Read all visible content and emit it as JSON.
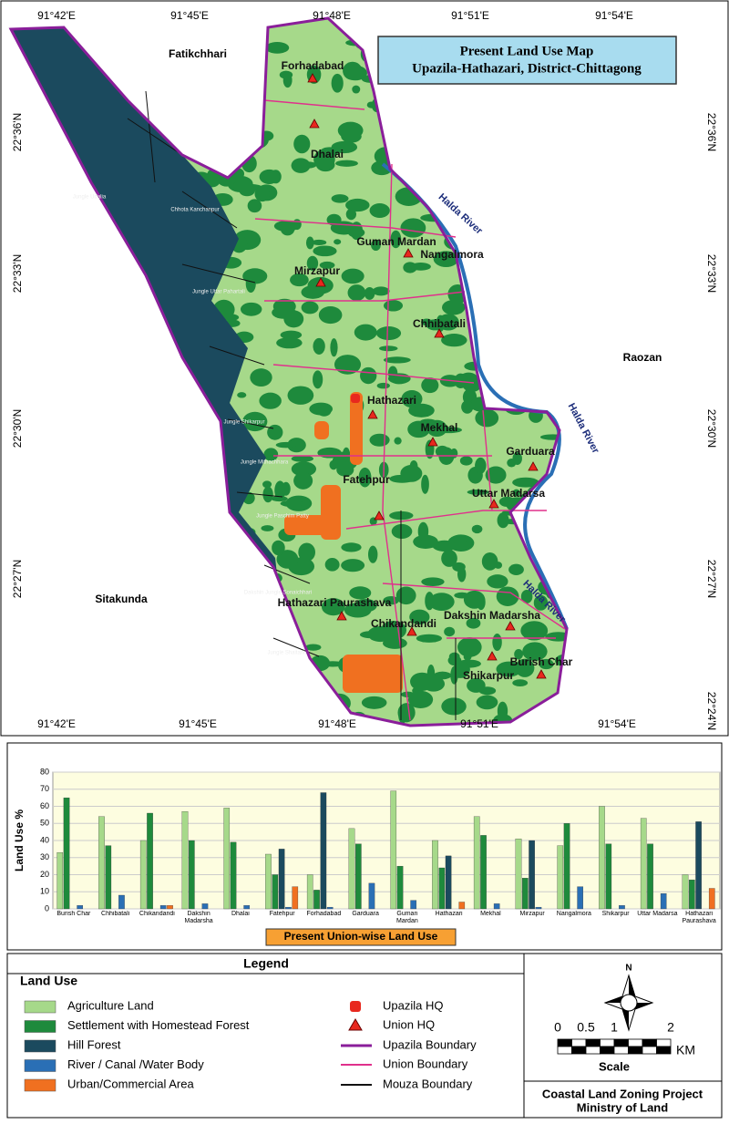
{
  "map": {
    "title": "Present  Land Use  Map",
    "subtitle": "Upazila-Hathazari, District-Chittagong",
    "lon_labels": [
      "91°42'E",
      "91°45'E",
      "91°48'E",
      "91°51'E",
      "91°54'E"
    ],
    "lat_labels": [
      "22°36'N",
      "22°33'N",
      "22°30'N",
      "22°27'N",
      "22°24'N"
    ],
    "regions": [
      "Fatikchhari",
      "Raozan",
      "Sitakunda"
    ],
    "rivers": [
      "Halda River",
      "Halda River",
      "Halda River"
    ],
    "unions": [
      "Forhadabad",
      "Dhalai",
      "Guman Mardan",
      "Nangalmora",
      "Mirzapur",
      "Chhibatali",
      "Hathazari",
      "Mekhal",
      "Garduara",
      "Uttar Madarsa",
      "Fatehpur",
      "Hathazari Paurashava",
      "Chikandandi",
      "Dakshin Madarsha",
      "Burish Char",
      "Shikarpur"
    ],
    "mouzas": [
      "Jungle Udalia",
      "Jungle Uttar Pahartali",
      "Jungle Shikarpur",
      "Jungle Mithachhara",
      "Jungle Paschim Patty",
      "Dakshin Jungle Sonaichhari",
      "Jungle Shaitani",
      "Chhota Kanchanpur"
    ]
  },
  "chart_data": {
    "type": "bar",
    "y_label": "Land Use %",
    "caption": "Present Union-wise Land Use",
    "categories": [
      "Burish Char",
      "Chhibatali",
      "Chikandandi",
      "Dakshin Madarsha",
      "Dhalai",
      "Fatehpur",
      "Forhadabad",
      "Garduara",
      "Guman Mardan",
      "Hathazari",
      "Mekhal",
      "Mirzapur",
      "Nangalmora",
      "Shikarpur",
      "Uttar Madarsa",
      "Hathazari Paurashava"
    ],
    "series": [
      {
        "name": "Agriculture Land",
        "color": "#a6d98a",
        "values": [
          33,
          54,
          40,
          57,
          59,
          32,
          20,
          47,
          69,
          40,
          54,
          41,
          37,
          60,
          53,
          20
        ]
      },
      {
        "name": "Settlement with Homestead Forest",
        "color": "#1e8a3c",
        "values": [
          65,
          37,
          56,
          40,
          39,
          20,
          11,
          38,
          25,
          24,
          43,
          18,
          50,
          38,
          38,
          17
        ]
      },
      {
        "name": "Hill Forest",
        "color": "#1b4a5e",
        "values": [
          0,
          0,
          0,
          0,
          0,
          35,
          68,
          0,
          0,
          31,
          0,
          40,
          0,
          0,
          0,
          51
        ]
      },
      {
        "name": "River / Canal /Water Body",
        "color": "#2a6fb5",
        "values": [
          2,
          8,
          2,
          3,
          2,
          1,
          1,
          15,
          5,
          0,
          3,
          1,
          13,
          2,
          9,
          0
        ]
      },
      {
        "name": "Urban/Commercial Area",
        "color": "#f07020",
        "values": [
          0,
          0,
          2,
          0,
          0,
          13,
          0,
          0,
          0,
          4,
          0,
          0,
          0,
          0,
          0,
          12
        ]
      }
    ],
    "ylim": [
      0,
      80
    ],
    "yticks": [
      0,
      10,
      20,
      30,
      40,
      50,
      60,
      70,
      80
    ],
    "grid": true
  },
  "legend": {
    "title": "Legend",
    "group_title": "Land Use",
    "symbols": [
      "Upazila HQ",
      "Union HQ",
      "Upazila Boundary",
      "Union Boundary",
      "Mouza Boundary"
    ]
  },
  "scale": {
    "ticks": [
      0,
      0.5,
      1,
      2
    ],
    "unit": "KM",
    "label": "Scale",
    "north": "N"
  },
  "footer": [
    "Coastal Land Zoning Project",
    "Ministry of Land"
  ]
}
